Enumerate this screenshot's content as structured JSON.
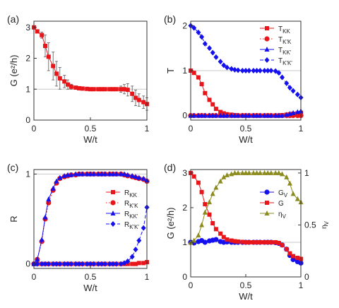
{
  "colors": {
    "red": "#e8161b",
    "blue": "#1410f0",
    "olive": "#8b8b1e",
    "frame": "#333333",
    "grid": "#c8c8c8",
    "errbar": "#555555"
  },
  "chart_data": [
    {
      "type": "line",
      "panel_label": "(a)",
      "xlabel": "W/t",
      "ylabel": "G (e²/h)",
      "xlim": [
        0,
        1
      ],
      "ylim": [
        0,
        3.2
      ],
      "xticks": [
        "0",
        "0.5",
        "1"
      ],
      "yticks": [
        "0",
        "1",
        "2",
        "3"
      ],
      "grid_y": [
        1
      ],
      "series": [
        {
          "color": "red",
          "marker": "square",
          "linestyle": "solid",
          "errorbars": true,
          "x": [
            0.0,
            0.03,
            0.07,
            0.1,
            0.13,
            0.17,
            0.2,
            0.23,
            0.27,
            0.3,
            0.33,
            0.37,
            0.4,
            0.43,
            0.47,
            0.5,
            0.53,
            0.57,
            0.6,
            0.63,
            0.67,
            0.7,
            0.73,
            0.77,
            0.8,
            0.83,
            0.87,
            0.9,
            0.93,
            0.97,
            1.0
          ],
          "y": [
            3.0,
            2.87,
            2.75,
            2.4,
            2.05,
            1.75,
            1.5,
            1.35,
            1.25,
            1.15,
            1.08,
            1.05,
            1.03,
            1.02,
            1.01,
            1.0,
            1.0,
            1.0,
            1.0,
            1.0,
            1.0,
            1.0,
            1.0,
            1.0,
            1.0,
            0.98,
            0.85,
            0.72,
            0.65,
            0.58,
            0.52
          ],
          "err": [
            0.05,
            0.05,
            0.1,
            0.35,
            0.45,
            0.45,
            0.4,
            0.35,
            0.2,
            0.15,
            0.08,
            0.05,
            0.03,
            0.02,
            0.02,
            0.02,
            0.02,
            0.02,
            0.02,
            0.02,
            0.02,
            0.02,
            0.05,
            0.1,
            0.15,
            0.2,
            0.25,
            0.25,
            0.2,
            0.2,
            0.2
          ]
        }
      ]
    },
    {
      "type": "line",
      "panel_label": "(b)",
      "xlabel": "W/t",
      "ylabel": "T",
      "xlim": [
        0,
        1
      ],
      "ylim": [
        -0.1,
        2.1
      ],
      "xticks": [
        "0",
        "0.5",
        "1"
      ],
      "yticks": [
        "0",
        "1",
        "2"
      ],
      "grid_y": [
        1
      ],
      "legend": "top-right",
      "series": [
        {
          "name": "T_KK",
          "color": "red",
          "marker": "square",
          "linestyle": "solid",
          "x": [
            0.0,
            0.03,
            0.07,
            0.1,
            0.13,
            0.17,
            0.2,
            0.23,
            0.27,
            0.3,
            0.33,
            0.37,
            0.4,
            0.43,
            0.47,
            0.5,
            0.53,
            0.57,
            0.6,
            0.63,
            0.67,
            0.7,
            0.73,
            0.77,
            0.8,
            0.83,
            0.87,
            0.9,
            0.93,
            0.97,
            1.0
          ],
          "y": [
            1.0,
            0.95,
            0.85,
            0.7,
            0.5,
            0.35,
            0.25,
            0.15,
            0.08,
            0.05,
            0.03,
            0.02,
            0.01,
            0.0,
            0.0,
            0.0,
            0.0,
            0.0,
            0.0,
            0.0,
            0.0,
            0.0,
            0.0,
            0.0,
            0.0,
            0.01,
            0.02,
            0.03,
            0.04,
            0.05,
            0.06
          ]
        },
        {
          "name": "T_K'K",
          "color": "red",
          "marker": "circle",
          "linestyle": "dotted",
          "x": [
            0.0,
            0.03,
            0.07,
            0.1,
            0.13,
            0.17,
            0.2,
            0.23,
            0.27,
            0.3,
            0.33,
            0.37,
            0.4,
            0.43,
            0.47,
            0.5,
            0.53,
            0.57,
            0.6,
            0.63,
            0.67,
            0.7,
            0.73,
            0.77,
            0.8,
            0.83,
            0.87,
            0.9,
            0.93,
            0.97,
            1.0
          ],
          "y": [
            0.0,
            0.0,
            0.0,
            0.0,
            0.0,
            0.0,
            0.0,
            0.0,
            0.0,
            0.0,
            0.0,
            0.0,
            0.0,
            0.0,
            0.0,
            0.0,
            0.0,
            0.0,
            0.0,
            0.0,
            0.0,
            0.0,
            0.0,
            0.0,
            0.0,
            0.0,
            0.0,
            0.0,
            0.0,
            0.0,
            0.0
          ]
        },
        {
          "name": "T_KK'",
          "color": "blue",
          "marker": "triangle",
          "linestyle": "solid",
          "x": [
            0.0,
            0.03,
            0.07,
            0.1,
            0.13,
            0.17,
            0.2,
            0.23,
            0.27,
            0.3,
            0.33,
            0.37,
            0.4,
            0.43,
            0.47,
            0.5,
            0.53,
            0.57,
            0.6,
            0.63,
            0.67,
            0.7,
            0.73,
            0.77,
            0.8,
            0.83,
            0.87,
            0.9,
            0.93,
            0.97,
            1.0
          ],
          "y": [
            0.0,
            0.0,
            0.0,
            0.0,
            0.0,
            0.0,
            0.0,
            0.0,
            0.0,
            0.0,
            0.0,
            0.0,
            0.0,
            0.0,
            0.0,
            0.0,
            0.0,
            0.0,
            0.0,
            0.0,
            0.0,
            0.0,
            0.0,
            0.0,
            0.0,
            0.0,
            0.02,
            0.04,
            0.06,
            0.08,
            0.1
          ]
        },
        {
          "name": "T_K'K'",
          "color": "blue",
          "marker": "diamond",
          "linestyle": "dashed",
          "x": [
            0.0,
            0.03,
            0.07,
            0.1,
            0.13,
            0.17,
            0.2,
            0.23,
            0.27,
            0.3,
            0.33,
            0.37,
            0.4,
            0.43,
            0.47,
            0.5,
            0.53,
            0.57,
            0.6,
            0.63,
            0.67,
            0.7,
            0.73,
            0.77,
            0.8,
            0.83,
            0.87,
            0.9,
            0.93,
            0.97,
            1.0
          ],
          "y": [
            2.0,
            1.95,
            1.85,
            1.75,
            1.6,
            1.5,
            1.4,
            1.3,
            1.2,
            1.12,
            1.07,
            1.04,
            1.02,
            1.01,
            1.0,
            1.0,
            1.0,
            1.0,
            1.0,
            1.0,
            1.0,
            1.0,
            1.0,
            0.99,
            0.95,
            0.85,
            0.72,
            0.62,
            0.55,
            0.47,
            0.4
          ]
        }
      ]
    },
    {
      "type": "line",
      "panel_label": "(c)",
      "xlabel": "W/t",
      "ylabel": "R",
      "xlim": [
        0,
        1
      ],
      "ylim": [
        -0.05,
        1.05
      ],
      "xticks": [
        "0",
        "0.5",
        "1"
      ],
      "yticks": [
        "0",
        "1"
      ],
      "grid_y": [
        1
      ],
      "legend": "right",
      "series": [
        {
          "name": "R_KK",
          "color": "red",
          "marker": "square",
          "linestyle": "solid",
          "x": [
            0.0,
            0.03,
            0.07,
            0.1,
            0.13,
            0.17,
            0.2,
            0.23,
            0.27,
            0.3,
            0.33,
            0.37,
            0.4,
            0.43,
            0.47,
            0.5,
            0.53,
            0.57,
            0.6,
            0.63,
            0.67,
            0.7,
            0.73,
            0.77,
            0.8,
            0.83,
            0.87,
            0.9,
            0.93,
            0.97,
            1.0
          ],
          "y": [
            0.0,
            0.0,
            0.0,
            0.0,
            0.0,
            0.0,
            0.0,
            0.0,
            0.0,
            0.0,
            0.0,
            0.0,
            0.0,
            0.0,
            0.0,
            0.0,
            0.0,
            0.0,
            0.0,
            0.0,
            0.0,
            0.0,
            0.0,
            0.0,
            0.0,
            0.0,
            0.0,
            0.0,
            0.01,
            0.01,
            0.02
          ]
        },
        {
          "name": "R_K'K",
          "color": "red",
          "marker": "circle",
          "linestyle": "dotted",
          "x": [
            0.0,
            0.03,
            0.07,
            0.1,
            0.13,
            0.17,
            0.2,
            0.23,
            0.27,
            0.3,
            0.33,
            0.37,
            0.4,
            0.43,
            0.47,
            0.5,
            0.53,
            0.57,
            0.6,
            0.63,
            0.67,
            0.7,
            0.73,
            0.77,
            0.8,
            0.83,
            0.87,
            0.9,
            0.93,
            0.97,
            1.0
          ],
          "y": [
            0.0,
            0.05,
            0.25,
            0.5,
            0.68,
            0.82,
            0.9,
            0.95,
            0.97,
            0.98,
            0.99,
            0.99,
            1.0,
            1.0,
            1.0,
            1.0,
            1.0,
            1.0,
            1.0,
            1.0,
            1.0,
            1.0,
            1.0,
            1.0,
            0.99,
            0.98,
            0.97,
            0.96,
            0.95,
            0.94,
            0.92
          ]
        },
        {
          "name": "R_KK'",
          "color": "blue",
          "marker": "triangle",
          "linestyle": "solid",
          "x": [
            0.0,
            0.03,
            0.07,
            0.1,
            0.13,
            0.17,
            0.2,
            0.23,
            0.27,
            0.3,
            0.33,
            0.37,
            0.4,
            0.43,
            0.47,
            0.5,
            0.53,
            0.57,
            0.6,
            0.63,
            0.67,
            0.7,
            0.73,
            0.77,
            0.8,
            0.83,
            0.87,
            0.9,
            0.93,
            0.97,
            1.0
          ],
          "y": [
            0.0,
            0.05,
            0.27,
            0.52,
            0.72,
            0.84,
            0.92,
            0.96,
            0.98,
            0.99,
            0.99,
            1.0,
            1.0,
            1.0,
            1.0,
            1.0,
            1.0,
            1.0,
            1.0,
            1.0,
            1.0,
            1.0,
            1.0,
            1.0,
            1.0,
            0.99,
            0.98,
            0.97,
            0.96,
            0.95,
            0.93
          ]
        },
        {
          "name": "R_K'K'",
          "color": "blue",
          "marker": "diamond",
          "linestyle": "dashed",
          "x": [
            0.0,
            0.03,
            0.07,
            0.1,
            0.13,
            0.17,
            0.2,
            0.23,
            0.27,
            0.3,
            0.33,
            0.37,
            0.4,
            0.43,
            0.47,
            0.5,
            0.53,
            0.57,
            0.6,
            0.63,
            0.67,
            0.7,
            0.73,
            0.77,
            0.8,
            0.83,
            0.87,
            0.9,
            0.93,
            0.97,
            1.0
          ],
          "y": [
            0.0,
            0.0,
            0.0,
            0.0,
            0.0,
            0.0,
            0.0,
            0.0,
            0.0,
            0.0,
            0.0,
            0.0,
            0.0,
            0.0,
            0.0,
            0.0,
            0.0,
            0.0,
            0.0,
            0.0,
            0.0,
            0.0,
            0.0,
            0.0,
            0.01,
            0.03,
            0.08,
            0.16,
            0.26,
            0.4,
            0.63
          ]
        }
      ]
    },
    {
      "type": "line",
      "panel_label": "(d)",
      "xlabel": "W/t",
      "ylabel": "G (e²/h)",
      "ylabel_right": "η_V",
      "xlim": [
        0,
        1
      ],
      "ylim": [
        0,
        3.1
      ],
      "ylim_right": [
        0,
        1.0333
      ],
      "xticks": [
        "0",
        "0.5",
        "1"
      ],
      "yticks": [
        "0",
        "1",
        "2",
        "3"
      ],
      "yticks_right": [
        "0",
        "0.5",
        "1"
      ],
      "grid_y": [
        1
      ],
      "legend": "right",
      "series": [
        {
          "name": "G_V",
          "color": "blue",
          "marker": "circle",
          "linestyle": "solid",
          "axis": "left",
          "x": [
            0.0,
            0.03,
            0.07,
            0.1,
            0.13,
            0.17,
            0.2,
            0.23,
            0.27,
            0.3,
            0.33,
            0.37,
            0.4,
            0.43,
            0.47,
            0.5,
            0.53,
            0.57,
            0.6,
            0.63,
            0.67,
            0.7,
            0.73,
            0.77,
            0.8,
            0.83,
            0.87,
            0.9,
            0.93,
            0.97,
            1.0
          ],
          "y": [
            1.0,
            0.98,
            1.02,
            1.05,
            1.0,
            1.04,
            1.06,
            1.08,
            1.02,
            1.0,
            1.01,
            1.0,
            1.0,
            1.0,
            1.0,
            1.0,
            1.0,
            1.0,
            1.0,
            1.0,
            1.0,
            1.0,
            1.0,
            0.99,
            0.97,
            0.92,
            0.8,
            0.62,
            0.5,
            0.44,
            0.4
          ]
        },
        {
          "name": "G",
          "color": "red",
          "marker": "square",
          "linestyle": "solid",
          "axis": "left",
          "x": [
            0.0,
            0.03,
            0.07,
            0.1,
            0.13,
            0.17,
            0.2,
            0.23,
            0.27,
            0.3,
            0.33,
            0.37,
            0.4,
            0.43,
            0.47,
            0.5,
            0.53,
            0.57,
            0.6,
            0.63,
            0.67,
            0.7,
            0.73,
            0.77,
            0.8,
            0.83,
            0.87,
            0.9,
            0.93,
            0.97,
            1.0
          ],
          "y": [
            3.0,
            2.9,
            2.72,
            2.45,
            2.1,
            1.8,
            1.55,
            1.38,
            1.25,
            1.15,
            1.08,
            1.05,
            1.03,
            1.02,
            1.01,
            1.0,
            1.0,
            1.0,
            1.0,
            1.0,
            1.0,
            1.0,
            1.0,
            1.0,
            0.98,
            0.92,
            0.8,
            0.68,
            0.6,
            0.55,
            0.52
          ]
        },
        {
          "name": "η_V",
          "color": "olive",
          "marker": "triangle",
          "linestyle": "solid",
          "axis": "right",
          "x": [
            0.0,
            0.03,
            0.07,
            0.1,
            0.13,
            0.17,
            0.2,
            0.23,
            0.27,
            0.3,
            0.33,
            0.37,
            0.4,
            0.43,
            0.47,
            0.5,
            0.53,
            0.57,
            0.6,
            0.63,
            0.67,
            0.7,
            0.73,
            0.77,
            0.8,
            0.83,
            0.87,
            0.9,
            0.93,
            0.97,
            1.0
          ],
          "y": [
            0.33,
            0.35,
            0.4,
            0.5,
            0.62,
            0.72,
            0.8,
            0.86,
            0.92,
            0.96,
            0.98,
            0.99,
            1.0,
            1.0,
            1.0,
            1.0,
            1.0,
            1.0,
            1.0,
            1.0,
            1.0,
            1.0,
            1.0,
            1.0,
            1.0,
            0.99,
            0.96,
            0.9,
            0.8,
            0.75,
            0.72
          ]
        }
      ]
    }
  ]
}
